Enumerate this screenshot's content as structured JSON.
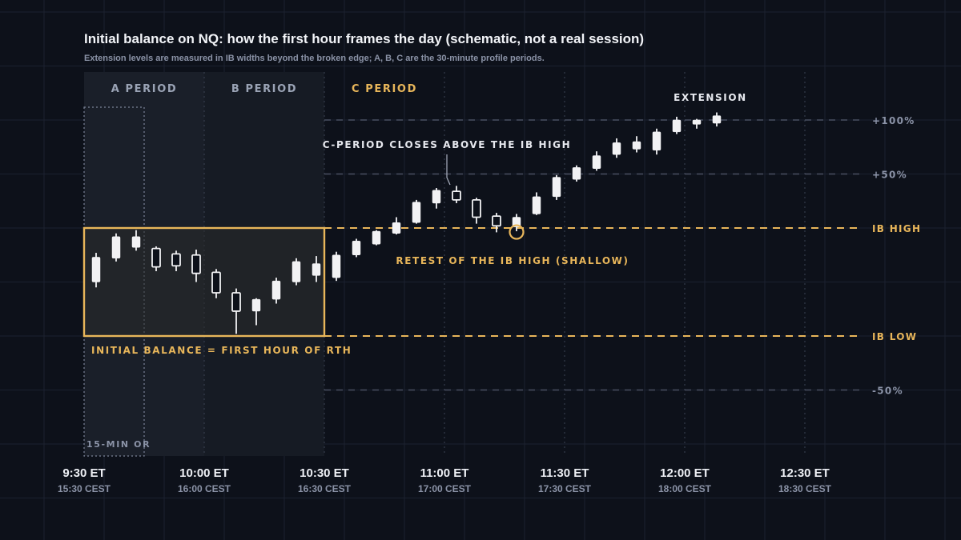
{
  "colors": {
    "background": "#0d111a",
    "grid": "#1b2130",
    "accent": "#e8b65a",
    "candle": "#f2f2f4",
    "muted": "#8b93a7",
    "period_label": "#9aa3b5",
    "level_line": "#4a5162"
  },
  "header": {
    "title": "Initial balance on NQ: how the first hour frames the day (schematic, not a real session)",
    "subtitle": "Extension levels are measured in IB widths beyond the broken edge; A, B, C are the 30-minute profile periods."
  },
  "chart_data": {
    "type": "candlestick",
    "title": "Initial balance on NQ: how the first hour frames the day (schematic, not a real session)",
    "subtitle": "Extension levels are measured in IB widths beyond the broken edge; A, B, C are the 30-minute profile periods.",
    "x_unit_minutes_after_0930": true,
    "xlim": [
      0,
      210
    ],
    "ylim": [
      -0.7,
      1.15
    ],
    "x_ticks": [
      {
        "t": 0,
        "et": "9:30 ET",
        "cest": "15:30 CEST"
      },
      {
        "t": 30,
        "et": "10:00 ET",
        "cest": "16:00 CEST"
      },
      {
        "t": 60,
        "et": "10:30 ET",
        "cest": "16:30 CEST"
      },
      {
        "t": 90,
        "et": "11:00 ET",
        "cest": "17:00 CEST"
      },
      {
        "t": 120,
        "et": "11:30 ET",
        "cest": "17:30 CEST"
      },
      {
        "t": 150,
        "et": "12:00 ET",
        "cest": "18:00 CEST"
      },
      {
        "t": 180,
        "et": "12:30 ET",
        "cest": "18:30 CEST"
      }
    ],
    "levels": [
      {
        "name": "+100%",
        "value": 1.0,
        "style": "minor"
      },
      {
        "name": "+50%",
        "value": 0.5,
        "style": "minor"
      },
      {
        "name": "IB HIGH",
        "value": 0.0,
        "style": "major"
      },
      {
        "name": "IB LOW",
        "value": -1.0,
        "style": "major"
      },
      {
        "name": "-50%",
        "value": -1.5,
        "style": "minor"
      }
    ],
    "periods": [
      {
        "label": "A PERIOD",
        "start": 0,
        "end": 30,
        "highlight": false
      },
      {
        "label": "B PERIOD",
        "start": 30,
        "end": 60,
        "highlight": false
      },
      {
        "label": "C PERIOD",
        "start": 60,
        "end": 90,
        "highlight": true
      }
    ],
    "opening_range": {
      "label": "15-MIN OR",
      "start": 0,
      "end": 15
    },
    "ib_box": {
      "label": "INITIAL BALANCE = FIRST HOUR OF RTH",
      "start": 0,
      "end": 60,
      "high": 0.0,
      "low": -1.0
    },
    "candles": [
      {
        "t": 3,
        "o": -0.5,
        "h": -0.23,
        "l": -0.55,
        "c": -0.27
      },
      {
        "t": 8,
        "o": -0.28,
        "h": -0.05,
        "l": -0.31,
        "c": -0.08
      },
      {
        "t": 13,
        "o": -0.18,
        "h": -0.02,
        "l": -0.21,
        "c": -0.08
      },
      {
        "t": 18,
        "o": -0.19,
        "h": -0.17,
        "l": -0.4,
        "c": -0.36
      },
      {
        "t": 23,
        "o": -0.24,
        "h": -0.21,
        "l": -0.4,
        "c": -0.35
      },
      {
        "t": 28,
        "o": -0.25,
        "h": -0.2,
        "l": -0.5,
        "c": -0.42
      },
      {
        "t": 33,
        "o": -0.41,
        "h": -0.38,
        "l": -0.65,
        "c": -0.6
      },
      {
        "t": 38,
        "o": -0.6,
        "h": -0.56,
        "l": -0.98,
        "c": -0.77
      },
      {
        "t": 43,
        "o": -0.77,
        "h": -0.65,
        "l": -0.9,
        "c": -0.66
      },
      {
        "t": 48,
        "o": -0.66,
        "h": -0.46,
        "l": -0.7,
        "c": -0.49
      },
      {
        "t": 53,
        "o": -0.5,
        "h": -0.28,
        "l": -0.53,
        "c": -0.31
      },
      {
        "t": 58,
        "o": -0.44,
        "h": -0.26,
        "l": -0.5,
        "c": -0.33
      },
      {
        "t": 63,
        "o": -0.46,
        "h": -0.22,
        "l": -0.49,
        "c": -0.25
      },
      {
        "t": 68,
        "o": -0.25,
        "h": -0.1,
        "l": -0.27,
        "c": -0.12
      },
      {
        "t": 73,
        "o": -0.15,
        "h": -0.02,
        "l": -0.16,
        "c": -0.03
      },
      {
        "t": 78,
        "o": -0.05,
        "h": 0.1,
        "l": -0.06,
        "c": 0.05
      },
      {
        "t": 83,
        "o": 0.05,
        "h": 0.26,
        "l": 0.04,
        "c": 0.24
      },
      {
        "t": 88,
        "o": 0.23,
        "h": 0.37,
        "l": 0.18,
        "c": 0.35
      },
      {
        "t": 93,
        "o": 0.34,
        "h": 0.39,
        "l": 0.23,
        "c": 0.26
      },
      {
        "t": 98,
        "o": 0.26,
        "h": 0.28,
        "l": 0.04,
        "c": 0.1
      },
      {
        "t": 103,
        "o": 0.11,
        "h": 0.14,
        "l": -0.04,
        "c": 0.02
      },
      {
        "t": 108,
        "o": 0.01,
        "h": 0.13,
        "l": -0.03,
        "c": 0.1
      },
      {
        "t": 113,
        "o": 0.13,
        "h": 0.33,
        "l": 0.12,
        "c": 0.29
      },
      {
        "t": 118,
        "o": 0.29,
        "h": 0.49,
        "l": 0.26,
        "c": 0.47
      },
      {
        "t": 123,
        "o": 0.45,
        "h": 0.58,
        "l": 0.43,
        "c": 0.56
      },
      {
        "t": 128,
        "o": 0.55,
        "h": 0.71,
        "l": 0.53,
        "c": 0.67
      },
      {
        "t": 133,
        "o": 0.68,
        "h": 0.83,
        "l": 0.65,
        "c": 0.79
      },
      {
        "t": 138,
        "o": 0.73,
        "h": 0.85,
        "l": 0.7,
        "c": 0.8
      },
      {
        "t": 143,
        "o": 0.72,
        "h": 0.92,
        "l": 0.68,
        "c": 0.89
      },
      {
        "t": 148,
        "o": 0.89,
        "h": 1.03,
        "l": 0.87,
        "c": 1.0
      },
      {
        "t": 153,
        "o": 0.96,
        "h": 1.01,
        "l": 0.92,
        "c": 1.0
      },
      {
        "t": 158,
        "o": 0.97,
        "h": 1.07,
        "l": 0.94,
        "c": 1.04
      }
    ],
    "annotations": [
      {
        "id": "c-close",
        "text": "C-PERIOD CLOSES ABOVE THE IB HIGH",
        "target": {
          "t": 93,
          "y": 0.39
        }
      },
      {
        "id": "retest",
        "text": "RETEST OF THE IB HIGH (SHALLOW)",
        "target": {
          "t": 108,
          "y": -0.03
        }
      },
      {
        "id": "extension",
        "text": "EXTENSION",
        "target": {
          "t": 150,
          "y": 1.1
        }
      }
    ]
  }
}
